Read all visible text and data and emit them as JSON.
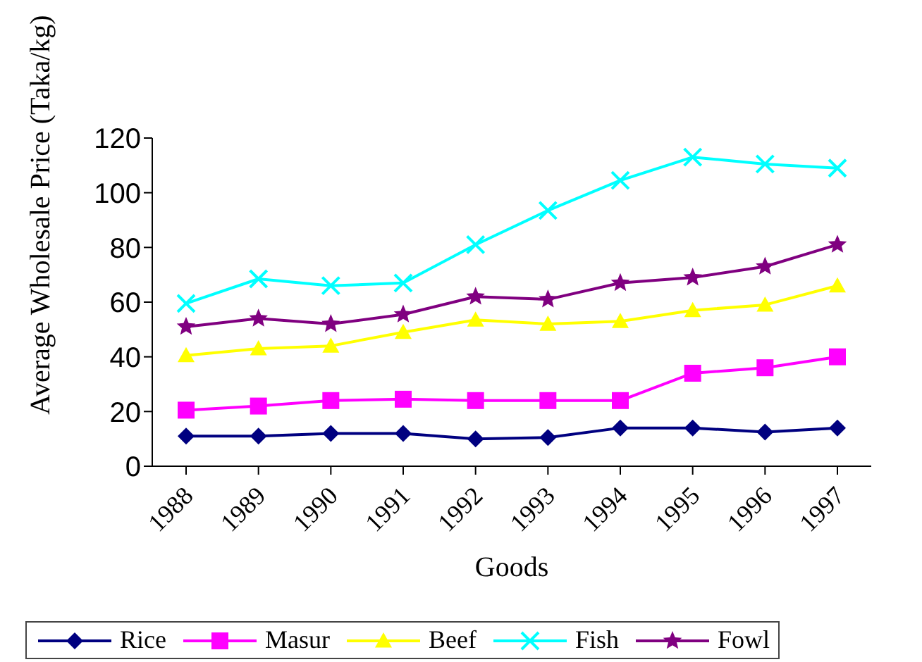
{
  "chart_data": {
    "type": "line",
    "xlabel": "Goods",
    "ylabel": "Average Wholesale Price (Taka/kg)",
    "categories": [
      "1988",
      "1989",
      "1990",
      "1991",
      "1992",
      "1993",
      "1994",
      "1995",
      "1996",
      "1997"
    ],
    "ylim": [
      0,
      120
    ],
    "yticks": [
      0,
      20,
      40,
      60,
      80,
      100,
      120
    ],
    "grid": false,
    "legend": "bottom",
    "series": [
      {
        "name": "Rice",
        "color": "#000080",
        "marker": "diamond",
        "values": [
          11,
          11,
          12,
          12,
          10,
          10.5,
          14,
          14,
          12.5,
          14
        ]
      },
      {
        "name": "Masur",
        "color": "#ff00ff",
        "marker": "square",
        "values": [
          20.5,
          22,
          24,
          24.5,
          24,
          24,
          24,
          34,
          36,
          40
        ]
      },
      {
        "name": "Beef",
        "color": "#ffff00",
        "marker": "triangle",
        "values": [
          40.5,
          43,
          44,
          49,
          53.5,
          52,
          53,
          57,
          59,
          66
        ]
      },
      {
        "name": "Fish",
        "color": "#00ffff",
        "marker": "cross",
        "values": [
          59.5,
          68.5,
          66,
          67,
          81,
          93.5,
          104.5,
          113,
          110.5,
          109
        ]
      },
      {
        "name": "Fowl",
        "color": "#800080",
        "marker": "star",
        "values": [
          51,
          54,
          52,
          55.5,
          62,
          61,
          67,
          69,
          73,
          81
        ]
      }
    ]
  }
}
